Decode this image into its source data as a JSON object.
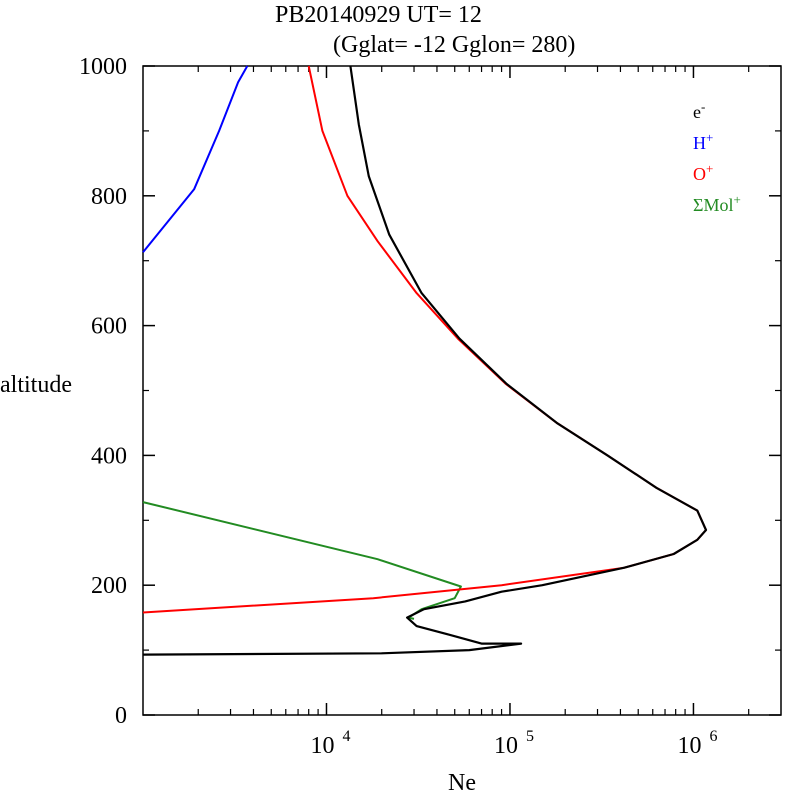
{
  "chart_data": {
    "type": "line",
    "title_line1": "PB20140929   UT=  12",
    "title_line2": "(Gglat= -12   Gglon=  280)",
    "xlabel": "Ne",
    "ylabel": "altitude",
    "x_scale": "log",
    "xlim": [
      1000,
      3000000
    ],
    "ylim": [
      0,
      1000
    ],
    "y_ticks": [
      0,
      200,
      400,
      600,
      800,
      1000
    ],
    "y_tick_labels": [
      "0",
      "200",
      "400",
      "600",
      "800",
      "1000"
    ],
    "y_minor_step": 100,
    "x_major_ticks": [
      10000,
      100000,
      1000000
    ],
    "x_tick_labels": [
      {
        "base": "10",
        "exp": "4"
      },
      {
        "base": "10",
        "exp": "5"
      },
      {
        "base": "10",
        "exp": "6"
      }
    ],
    "grid": false,
    "legend_position": "top-right",
    "legend": [
      {
        "base": "e",
        "sup": "-",
        "color": "#000000"
      },
      {
        "base": "H",
        "sup": "+",
        "color": "#0000ff"
      },
      {
        "base": "O",
        "sup": "+",
        "color": "#ff0000"
      },
      {
        "base": "ΣMol",
        "sup": "+",
        "color": "#228b22"
      }
    ],
    "series": [
      {
        "name": "ΣMol+",
        "color": "#228b22",
        "points": [
          [
            1000,
            328
          ],
          [
            19000,
            240
          ],
          [
            54000,
            198
          ],
          [
            50000,
            180
          ],
          [
            33000,
            163
          ],
          [
            28000,
            150
          ],
          [
            30000,
            148
          ]
        ]
      },
      {
        "name": "O+",
        "color": "#ff0000",
        "points": [
          [
            1000,
            158
          ],
          [
            18000,
            180
          ],
          [
            90000,
            200
          ],
          [
            420000,
            227
          ],
          [
            780000,
            248
          ],
          [
            1050000,
            270
          ],
          [
            1170000,
            285
          ],
          [
            1050000,
            315
          ],
          [
            630000,
            350
          ],
          [
            340000,
            400
          ],
          [
            180000,
            450
          ],
          [
            95000,
            510
          ],
          [
            52000,
            580
          ],
          [
            31000,
            650
          ],
          [
            19000,
            730
          ],
          [
            13000,
            800
          ],
          [
            9500,
            900
          ],
          [
            8000,
            1000
          ]
        ]
      },
      {
        "name": "H+",
        "color": "#0000ff",
        "points": [
          [
            1000,
            713
          ],
          [
            1900,
            810
          ],
          [
            2600,
            900
          ],
          [
            3300,
            975
          ],
          [
            3700,
            1000
          ]
        ]
      },
      {
        "name": "e-",
        "color": "#000000",
        "points": [
          [
            1000,
            93
          ],
          [
            20000,
            95
          ],
          [
            60000,
            100
          ],
          [
            115000,
            110
          ],
          [
            70000,
            110
          ],
          [
            45000,
            125
          ],
          [
            31000,
            137
          ],
          [
            27500,
            150
          ],
          [
            34000,
            163
          ],
          [
            57000,
            175
          ],
          [
            90000,
            190
          ],
          [
            150000,
            200
          ],
          [
            420000,
            227
          ],
          [
            780000,
            248
          ],
          [
            1050000,
            270
          ],
          [
            1170000,
            285
          ],
          [
            1050000,
            315
          ],
          [
            630000,
            350
          ],
          [
            340000,
            400
          ],
          [
            180000,
            450
          ],
          [
            96000,
            510
          ],
          [
            53000,
            580
          ],
          [
            33000,
            650
          ],
          [
            22000,
            740
          ],
          [
            17000,
            830
          ],
          [
            15000,
            910
          ],
          [
            13500,
            1000
          ]
        ]
      }
    ]
  }
}
